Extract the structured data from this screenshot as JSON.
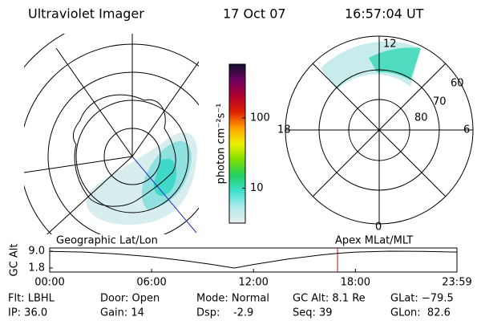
{
  "header": {
    "title": "Ultraviolet Imager",
    "date": "17 Oct 07",
    "time": "16:57:04 UT"
  },
  "geo_panel": {
    "label": "Geographic Lat/Lon"
  },
  "mlt_panel": {
    "label": "Apex MLat/MLT",
    "mlt_labels": [
      "12",
      "18",
      "6",
      "0"
    ],
    "mlat_labels": [
      "60",
      "70",
      "80"
    ]
  },
  "info": {
    "rows": [
      [
        "Flt: LBHL",
        "Door: Open",
        "Mode: Normal",
        "GC Alt: 8.1 Re",
        "GLat: −79.5"
      ],
      [
        "IP: 36.0",
        "Gain: 14",
        "Dsp:    -2.9",
        "Seq: 39",
        "GLon:  82.6"
      ]
    ]
  },
  "chart_data": [
    {
      "type": "colorbar",
      "y_label": "photon cm⁻²s⁻¹",
      "log_scale": true,
      "ylim": [
        3.2,
        580
      ],
      "yticks": [
        10,
        100
      ],
      "colors": [
        "#e8eeee",
        "#b0ecec",
        "#40e0d0",
        "#20d060",
        "#80e000",
        "#f0f000",
        "#ffa000",
        "#e02000",
        "#b00030",
        "#700060",
        "#101030"
      ]
    },
    {
      "type": "line",
      "y_label": "GC Alt",
      "color": "#000000",
      "cursor_color": "#e00000",
      "cursor_x": 16.95,
      "x": [
        0,
        2,
        4,
        6,
        8,
        9.5,
        10.87,
        12,
        14,
        16,
        17,
        18,
        20,
        22,
        23.98
      ],
      "values": [
        8.9,
        8.6,
        7.8,
        6.6,
        4.9,
        3.4,
        1.8,
        3.3,
        5.6,
        7.4,
        8.1,
        8.6,
        9.0,
        8.9,
        8.6
      ],
      "xlim": [
        0,
        23.98
      ],
      "ylim": [
        1.8,
        9.0
      ],
      "xticks": [
        {
          "value": 0,
          "label": "00:00"
        },
        {
          "value": 6,
          "label": "06:00"
        },
        {
          "value": 12,
          "label": "12:00"
        },
        {
          "value": 18,
          "label": "18:00"
        },
        {
          "value": 23.98,
          "label": "23:59"
        }
      ],
      "yticks": [
        {
          "value": 1.8,
          "label": "1.8"
        },
        {
          "value": 9.0,
          "label": "9.0"
        }
      ]
    }
  ]
}
